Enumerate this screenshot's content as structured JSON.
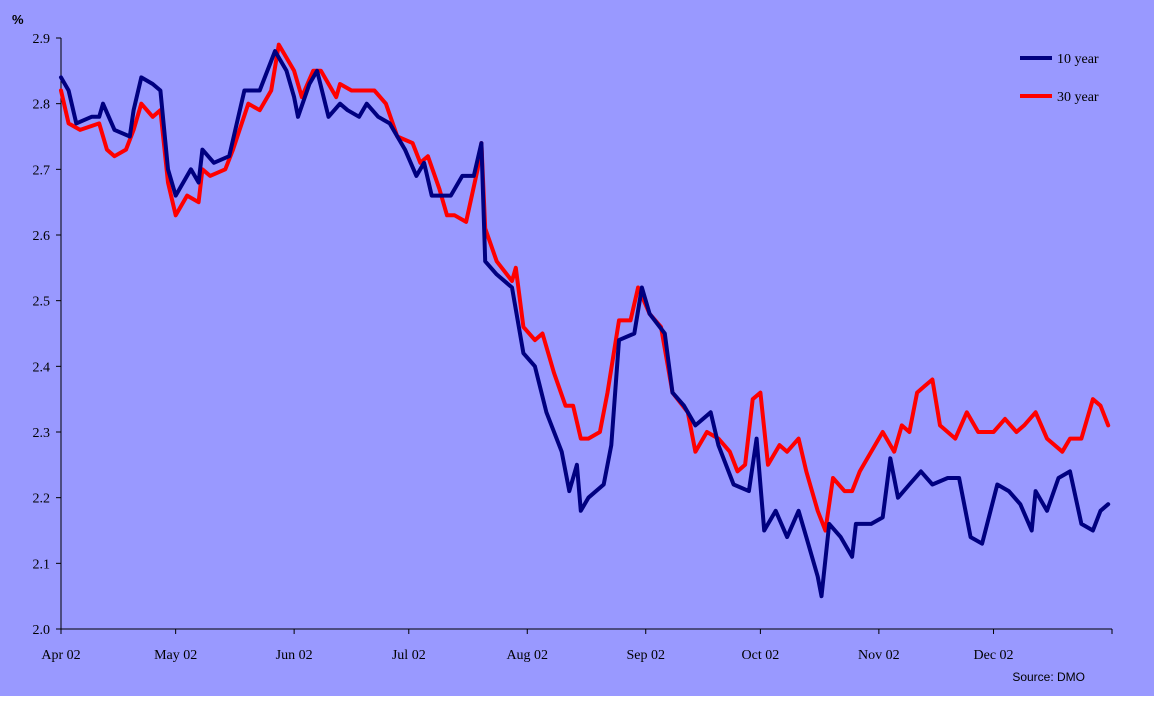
{
  "chart_data": {
    "type": "line",
    "ylabel": "%",
    "ylim": [
      2.0,
      2.9
    ],
    "yticks": [
      "2.0",
      "2.1",
      "2.2",
      "2.3",
      "2.4",
      "2.5",
      "2.6",
      "2.7",
      "2.8",
      "2.9"
    ],
    "xticks": [
      "Apr 02",
      "May 02",
      "Jun 02",
      "Jul 02",
      "Aug 02",
      "Sep 02",
      "Oct 02",
      "Nov 02",
      "Dec 02"
    ],
    "x_range": [
      "2002-04-01",
      "2002-12-31"
    ],
    "legend_position": "top-right",
    "source": "Source:  DMO",
    "colors": {
      "background": "#9999ff",
      "grid": "none"
    },
    "series": [
      {
        "name": "10 year",
        "color": "#000080",
        "points": [
          [
            "2002-04-01",
            2.84
          ],
          [
            "2002-04-03",
            2.82
          ],
          [
            "2002-04-05",
            2.77
          ],
          [
            "2002-04-09",
            2.78
          ],
          [
            "2002-04-11",
            2.78
          ],
          [
            "2002-04-12",
            2.8
          ],
          [
            "2002-04-15",
            2.76
          ],
          [
            "2002-04-19",
            2.75
          ],
          [
            "2002-04-20",
            2.79
          ],
          [
            "2002-04-22",
            2.84
          ],
          [
            "2002-04-25",
            2.83
          ],
          [
            "2002-04-27",
            2.82
          ],
          [
            "2002-04-29",
            2.7
          ],
          [
            "2002-05-01",
            2.66
          ],
          [
            "2002-05-05",
            2.7
          ],
          [
            "2002-05-07",
            2.68
          ],
          [
            "2002-05-08",
            2.73
          ],
          [
            "2002-05-11",
            2.71
          ],
          [
            "2002-05-15",
            2.72
          ],
          [
            "2002-05-19",
            2.82
          ],
          [
            "2002-05-23",
            2.82
          ],
          [
            "2002-05-27",
            2.88
          ],
          [
            "2002-05-30",
            2.85
          ],
          [
            "2002-06-01",
            2.81
          ],
          [
            "2002-06-02",
            2.78
          ],
          [
            "2002-06-05",
            2.83
          ],
          [
            "2002-06-07",
            2.85
          ],
          [
            "2002-06-10",
            2.78
          ],
          [
            "2002-06-13",
            2.8
          ],
          [
            "2002-06-15",
            2.79
          ],
          [
            "2002-06-18",
            2.78
          ],
          [
            "2002-06-20",
            2.8
          ],
          [
            "2002-06-23",
            2.78
          ],
          [
            "2002-06-26",
            2.77
          ],
          [
            "2002-06-30",
            2.73
          ],
          [
            "2002-07-03",
            2.69
          ],
          [
            "2002-07-05",
            2.71
          ],
          [
            "2002-07-07",
            2.66
          ],
          [
            "2002-07-09",
            2.66
          ],
          [
            "2002-07-12",
            2.66
          ],
          [
            "2002-07-15",
            2.69
          ],
          [
            "2002-07-18",
            2.69
          ],
          [
            "2002-07-20",
            2.74
          ],
          [
            "2002-07-21",
            2.56
          ],
          [
            "2002-07-24",
            2.54
          ],
          [
            "2002-07-28",
            2.52
          ],
          [
            "2002-07-31",
            2.42
          ],
          [
            "2002-08-03",
            2.4
          ],
          [
            "2002-08-06",
            2.33
          ],
          [
            "2002-08-10",
            2.27
          ],
          [
            "2002-08-12",
            2.21
          ],
          [
            "2002-08-14",
            2.25
          ],
          [
            "2002-08-15",
            2.18
          ],
          [
            "2002-08-17",
            2.2
          ],
          [
            "2002-08-21",
            2.22
          ],
          [
            "2002-08-23",
            2.28
          ],
          [
            "2002-08-25",
            2.44
          ],
          [
            "2002-08-29",
            2.45
          ],
          [
            "2002-08-31",
            2.52
          ],
          [
            "2002-09-02",
            2.48
          ],
          [
            "2002-09-06",
            2.45
          ],
          [
            "2002-09-08",
            2.36
          ],
          [
            "2002-09-11",
            2.34
          ],
          [
            "2002-09-14",
            2.31
          ],
          [
            "2002-09-18",
            2.33
          ],
          [
            "2002-09-20",
            2.28
          ],
          [
            "2002-09-24",
            2.22
          ],
          [
            "2002-09-28",
            2.21
          ],
          [
            "2002-09-30",
            2.29
          ],
          [
            "2002-10-02",
            2.15
          ],
          [
            "2002-10-05",
            2.18
          ],
          [
            "2002-10-08",
            2.14
          ],
          [
            "2002-10-11",
            2.18
          ],
          [
            "2002-10-13",
            2.14
          ],
          [
            "2002-10-16",
            2.08
          ],
          [
            "2002-10-17",
            2.05
          ],
          [
            "2002-10-19",
            2.16
          ],
          [
            "2002-10-22",
            2.14
          ],
          [
            "2002-10-25",
            2.11
          ],
          [
            "2002-10-26",
            2.16
          ],
          [
            "2002-10-30",
            2.16
          ],
          [
            "2002-11-02",
            2.17
          ],
          [
            "2002-11-04",
            2.26
          ],
          [
            "2002-11-06",
            2.2
          ],
          [
            "2002-11-09",
            2.22
          ],
          [
            "2002-11-12",
            2.24
          ],
          [
            "2002-11-15",
            2.22
          ],
          [
            "2002-11-19",
            2.23
          ],
          [
            "2002-11-22",
            2.23
          ],
          [
            "2002-11-25",
            2.14
          ],
          [
            "2002-11-28",
            2.13
          ],
          [
            "2002-12-02",
            2.22
          ],
          [
            "2002-12-05",
            2.21
          ],
          [
            "2002-12-08",
            2.19
          ],
          [
            "2002-12-11",
            2.15
          ],
          [
            "2002-12-12",
            2.21
          ],
          [
            "2002-12-15",
            2.18
          ],
          [
            "2002-12-18",
            2.23
          ],
          [
            "2002-12-21",
            2.24
          ],
          [
            "2002-12-24",
            2.16
          ],
          [
            "2002-12-27",
            2.15
          ],
          [
            "2002-12-29",
            2.18
          ],
          [
            "2002-12-31",
            2.19
          ]
        ]
      },
      {
        "name": "30 year",
        "color": "#ff0000",
        "points": [
          [
            "2002-04-01",
            2.82
          ],
          [
            "2002-04-03",
            2.77
          ],
          [
            "2002-04-06",
            2.76
          ],
          [
            "2002-04-11",
            2.77
          ],
          [
            "2002-04-13",
            2.73
          ],
          [
            "2002-04-15",
            2.72
          ],
          [
            "2002-04-18",
            2.73
          ],
          [
            "2002-04-20",
            2.76
          ],
          [
            "2002-04-22",
            2.8
          ],
          [
            "2002-04-25",
            2.78
          ],
          [
            "2002-04-27",
            2.79
          ],
          [
            "2002-04-29",
            2.68
          ],
          [
            "2002-05-01",
            2.63
          ],
          [
            "2002-05-04",
            2.66
          ],
          [
            "2002-05-07",
            2.65
          ],
          [
            "2002-05-08",
            2.7
          ],
          [
            "2002-05-10",
            2.69
          ],
          [
            "2002-05-14",
            2.7
          ],
          [
            "2002-05-16",
            2.73
          ],
          [
            "2002-05-20",
            2.8
          ],
          [
            "2002-05-23",
            2.79
          ],
          [
            "2002-05-26",
            2.82
          ],
          [
            "2002-05-28",
            2.89
          ],
          [
            "2002-06-01",
            2.85
          ],
          [
            "2002-06-03",
            2.81
          ],
          [
            "2002-06-06",
            2.85
          ],
          [
            "2002-06-08",
            2.85
          ],
          [
            "2002-06-12",
            2.81
          ],
          [
            "2002-06-13",
            2.83
          ],
          [
            "2002-06-16",
            2.82
          ],
          [
            "2002-06-20",
            2.82
          ],
          [
            "2002-06-22",
            2.82
          ],
          [
            "2002-06-25",
            2.8
          ],
          [
            "2002-06-28",
            2.75
          ],
          [
            "2002-07-02",
            2.74
          ],
          [
            "2002-07-04",
            2.71
          ],
          [
            "2002-07-06",
            2.72
          ],
          [
            "2002-07-09",
            2.67
          ],
          [
            "2002-07-11",
            2.63
          ],
          [
            "2002-07-13",
            2.63
          ],
          [
            "2002-07-16",
            2.62
          ],
          [
            "2002-07-19",
            2.7
          ],
          [
            "2002-07-20",
            2.74
          ],
          [
            "2002-07-21",
            2.61
          ],
          [
            "2002-07-24",
            2.56
          ],
          [
            "2002-07-28",
            2.53
          ],
          [
            "2002-07-29",
            2.55
          ],
          [
            "2002-07-31",
            2.46
          ],
          [
            "2002-08-03",
            2.44
          ],
          [
            "2002-08-05",
            2.45
          ],
          [
            "2002-08-08",
            2.39
          ],
          [
            "2002-08-11",
            2.34
          ],
          [
            "2002-08-13",
            2.34
          ],
          [
            "2002-08-15",
            2.29
          ],
          [
            "2002-08-17",
            2.29
          ],
          [
            "2002-08-20",
            2.3
          ],
          [
            "2002-08-22",
            2.36
          ],
          [
            "2002-08-25",
            2.47
          ],
          [
            "2002-08-28",
            2.47
          ],
          [
            "2002-08-30",
            2.52
          ],
          [
            "2002-09-02",
            2.48
          ],
          [
            "2002-09-05",
            2.46
          ],
          [
            "2002-09-08",
            2.36
          ],
          [
            "2002-09-12",
            2.33
          ],
          [
            "2002-09-14",
            2.27
          ],
          [
            "2002-09-17",
            2.3
          ],
          [
            "2002-09-20",
            2.29
          ],
          [
            "2002-09-23",
            2.27
          ],
          [
            "2002-09-25",
            2.24
          ],
          [
            "2002-09-27",
            2.25
          ],
          [
            "2002-09-29",
            2.35
          ],
          [
            "2002-10-01",
            2.36
          ],
          [
            "2002-10-03",
            2.25
          ],
          [
            "2002-10-06",
            2.28
          ],
          [
            "2002-10-08",
            2.27
          ],
          [
            "2002-10-11",
            2.29
          ],
          [
            "2002-10-13",
            2.24
          ],
          [
            "2002-10-16",
            2.18
          ],
          [
            "2002-10-18",
            2.15
          ],
          [
            "2002-10-20",
            2.23
          ],
          [
            "2002-10-23",
            2.21
          ],
          [
            "2002-10-25",
            2.21
          ],
          [
            "2002-10-27",
            2.24
          ],
          [
            "2002-10-29",
            2.26
          ],
          [
            "2002-11-02",
            2.3
          ],
          [
            "2002-11-05",
            2.27
          ],
          [
            "2002-11-07",
            2.31
          ],
          [
            "2002-11-09",
            2.3
          ],
          [
            "2002-11-11",
            2.36
          ],
          [
            "2002-11-13",
            2.37
          ],
          [
            "2002-11-15",
            2.38
          ],
          [
            "2002-11-17",
            2.31
          ],
          [
            "2002-11-21",
            2.29
          ],
          [
            "2002-11-24",
            2.33
          ],
          [
            "2002-11-27",
            2.3
          ],
          [
            "2002-12-01",
            2.3
          ],
          [
            "2002-12-04",
            2.32
          ],
          [
            "2002-12-07",
            2.3
          ],
          [
            "2002-12-09",
            2.31
          ],
          [
            "2002-12-12",
            2.33
          ],
          [
            "2002-12-15",
            2.29
          ],
          [
            "2002-12-19",
            2.27
          ],
          [
            "2002-12-21",
            2.29
          ],
          [
            "2002-12-24",
            2.29
          ],
          [
            "2002-12-27",
            2.35
          ],
          [
            "2002-12-29",
            2.34
          ],
          [
            "2002-12-31",
            2.31
          ]
        ]
      }
    ]
  }
}
